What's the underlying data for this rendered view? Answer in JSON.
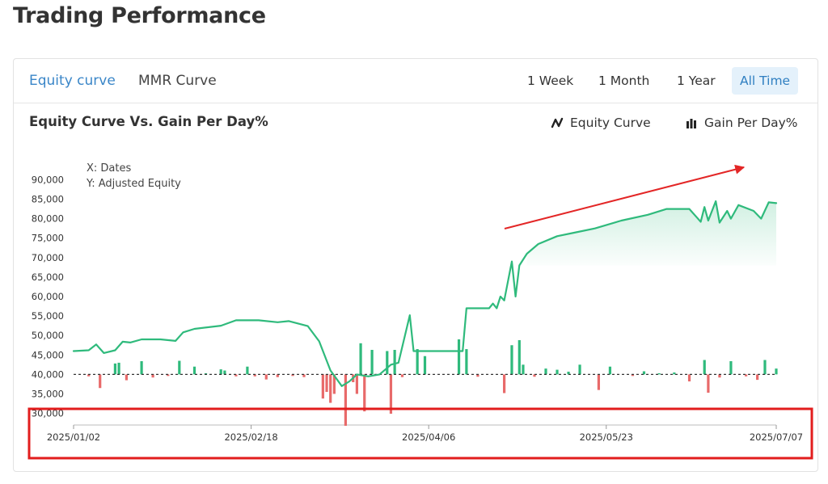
{
  "page": {
    "title": "Trading Performance"
  },
  "tabs": [
    {
      "label": "Equity curve",
      "active": true
    },
    {
      "label": "MMR Curve",
      "active": false
    }
  ],
  "ranges": [
    {
      "label": "1 Week",
      "active": false
    },
    {
      "label": "1 Month",
      "active": false
    },
    {
      "label": "1 Year",
      "active": false
    },
    {
      "label": "All Time",
      "active": true
    }
  ],
  "chart_header": {
    "title": "Equity Curve Vs. Gain Per Day%",
    "legend_line": "Equity Curve",
    "legend_bar": "Gain Per Day%",
    "legend_line_icon": "line-chart-icon",
    "legend_bar_icon": "bar-chart-icon"
  },
  "colors": {
    "accent": "#3a86c8",
    "line": "#2fba7c",
    "bar_positive": "#2fba7c",
    "bar_negative": "#e86a6a",
    "annotation_arrow": "#e32626",
    "highlight_box": "#e21d1d"
  },
  "chart_data": {
    "type": "line",
    "annotation_lines": [
      "X: Dates",
      "Y: Adjusted Equity"
    ],
    "ylim": [
      27000,
      93000
    ],
    "yticks": [
      30000,
      35000,
      40000,
      45000,
      50000,
      55000,
      60000,
      65000,
      70000,
      75000,
      80000,
      85000,
      90000
    ],
    "ytick_labels": [
      "30,000",
      "35,000",
      "40,000",
      "45,000",
      "50,000",
      "55,000",
      "60,000",
      "65,000",
      "70,000",
      "75,000",
      "80,000",
      "85,000",
      "90,000"
    ],
    "xlim": [
      "2025-01-02",
      "2025-07-07"
    ],
    "xtick_labels": [
      "2025/01/02",
      "2025/02/18",
      "2025/04/06",
      "2025/05/23",
      "2025/07/07"
    ],
    "xtick_dates": [
      "2025-01-02",
      "2025-02-18",
      "2025-04-06",
      "2025-05-23",
      "2025-07-07"
    ],
    "baseline": 40000,
    "grid": false,
    "series": [
      {
        "kind": "line",
        "points": [
          [
            "2025-01-02",
            46000
          ],
          [
            "2025-01-06",
            46200
          ],
          [
            "2025-01-08",
            47700
          ],
          [
            "2025-01-10",
            45500
          ],
          [
            "2025-01-13",
            46200
          ],
          [
            "2025-01-15",
            48400
          ],
          [
            "2025-01-17",
            48200
          ],
          [
            "2025-01-20",
            49000
          ],
          [
            "2025-01-25",
            49000
          ],
          [
            "2025-01-29",
            48600
          ],
          [
            "2025-01-31",
            50800
          ],
          [
            "2025-02-03",
            51700
          ],
          [
            "2025-02-10",
            52500
          ],
          [
            "2025-02-14",
            53900
          ],
          [
            "2025-02-20",
            53900
          ],
          [
            "2025-02-25",
            53400
          ],
          [
            "2025-02-28",
            53700
          ],
          [
            "2025-03-05",
            52400
          ],
          [
            "2025-03-08",
            48500
          ],
          [
            "2025-03-11",
            41000
          ],
          [
            "2025-03-14",
            37000
          ],
          [
            "2025-03-16",
            38200
          ],
          [
            "2025-03-18",
            40000
          ],
          [
            "2025-03-21",
            39500
          ],
          [
            "2025-03-24",
            40000
          ],
          [
            "2025-03-27",
            42500
          ],
          [
            "2025-03-29",
            43000
          ],
          [
            "2025-04-01",
            55200
          ],
          [
            "2025-04-02",
            46000
          ],
          [
            "2025-04-05",
            46000
          ],
          [
            "2025-04-10",
            46000
          ],
          [
            "2025-04-15",
            46000
          ],
          [
            "2025-04-16",
            57000
          ],
          [
            "2025-04-22",
            57000
          ],
          [
            "2025-04-23",
            58200
          ],
          [
            "2025-04-24",
            57000
          ],
          [
            "2025-04-25",
            60000
          ],
          [
            "2025-04-26",
            59000
          ],
          [
            "2025-04-28",
            69000
          ],
          [
            "2025-04-29",
            60000
          ],
          [
            "2025-04-30",
            68000
          ],
          [
            "2025-05-02",
            71000
          ],
          [
            "2025-05-05",
            73500
          ],
          [
            "2025-05-10",
            75500
          ],
          [
            "2025-05-15",
            76500
          ],
          [
            "2025-05-20",
            77500
          ],
          [
            "2025-05-27",
            79500
          ],
          [
            "2025-06-03",
            81000
          ],
          [
            "2025-06-08",
            82500
          ],
          [
            "2025-06-14",
            82500
          ],
          [
            "2025-06-16",
            80300
          ],
          [
            "2025-06-17",
            79200
          ],
          [
            "2025-06-18",
            83000
          ],
          [
            "2025-06-19",
            79500
          ],
          [
            "2025-06-21",
            84500
          ],
          [
            "2025-06-22",
            79000
          ],
          [
            "2025-06-24",
            82000
          ],
          [
            "2025-06-25",
            80000
          ],
          [
            "2025-06-27",
            83500
          ],
          [
            "2025-07-01",
            82000
          ],
          [
            "2025-07-03",
            80000
          ],
          [
            "2025-07-05",
            84200
          ],
          [
            "2025-07-07",
            84000
          ]
        ]
      },
      {
        "kind": "bar",
        "points": [
          [
            "2025-01-06",
            39500
          ],
          [
            "2025-01-09",
            36500
          ],
          [
            "2025-01-13",
            42800
          ],
          [
            "2025-01-14",
            43000
          ],
          [
            "2025-01-16",
            38500
          ],
          [
            "2025-01-20",
            43400
          ],
          [
            "2025-01-23",
            39200
          ],
          [
            "2025-01-27",
            39600
          ],
          [
            "2025-01-30",
            43500
          ],
          [
            "2025-02-03",
            42000
          ],
          [
            "2025-02-06",
            40300
          ],
          [
            "2025-02-10",
            41300
          ],
          [
            "2025-02-11",
            41000
          ],
          [
            "2025-02-14",
            39500
          ],
          [
            "2025-02-17",
            42000
          ],
          [
            "2025-02-19",
            39500
          ],
          [
            "2025-02-22",
            38700
          ],
          [
            "2025-02-25",
            39300
          ],
          [
            "2025-03-01",
            39600
          ],
          [
            "2025-03-04",
            39300
          ],
          [
            "2025-03-09",
            33800
          ],
          [
            "2025-03-10",
            35500
          ],
          [
            "2025-03-11",
            32700
          ],
          [
            "2025-03-12",
            35000
          ],
          [
            "2025-03-15",
            26800
          ],
          [
            "2025-03-17",
            38000
          ],
          [
            "2025-03-18",
            35000
          ],
          [
            "2025-03-19",
            48000
          ],
          [
            "2025-03-20",
            30500
          ],
          [
            "2025-03-22",
            46300
          ],
          [
            "2025-03-26",
            46000
          ],
          [
            "2025-03-27",
            29900
          ],
          [
            "2025-03-28",
            46300
          ],
          [
            "2025-03-30",
            39300
          ],
          [
            "2025-04-03",
            46500
          ],
          [
            "2025-04-05",
            44700
          ],
          [
            "2025-04-14",
            49000
          ],
          [
            "2025-04-16",
            46500
          ],
          [
            "2025-04-19",
            39400
          ],
          [
            "2025-04-26",
            35200
          ],
          [
            "2025-04-28",
            47500
          ],
          [
            "2025-04-30",
            48800
          ],
          [
            "2025-05-01",
            42500
          ],
          [
            "2025-05-04",
            39400
          ],
          [
            "2025-05-07",
            41500
          ],
          [
            "2025-05-10",
            41200
          ],
          [
            "2025-05-13",
            40700
          ],
          [
            "2025-05-16",
            42500
          ],
          [
            "2025-05-21",
            36000
          ],
          [
            "2025-05-24",
            42000
          ],
          [
            "2025-05-30",
            39600
          ],
          [
            "2025-06-02",
            40800
          ],
          [
            "2025-06-06",
            40300
          ],
          [
            "2025-06-10",
            40500
          ],
          [
            "2025-06-14",
            38200
          ],
          [
            "2025-06-18",
            43700
          ],
          [
            "2025-06-19",
            35300
          ],
          [
            "2025-06-22",
            39200
          ],
          [
            "2025-06-25",
            43400
          ],
          [
            "2025-06-29",
            39500
          ],
          [
            "2025-07-02",
            38600
          ],
          [
            "2025-07-04",
            43700
          ],
          [
            "2025-07-07",
            41500
          ]
        ]
      }
    ]
  }
}
